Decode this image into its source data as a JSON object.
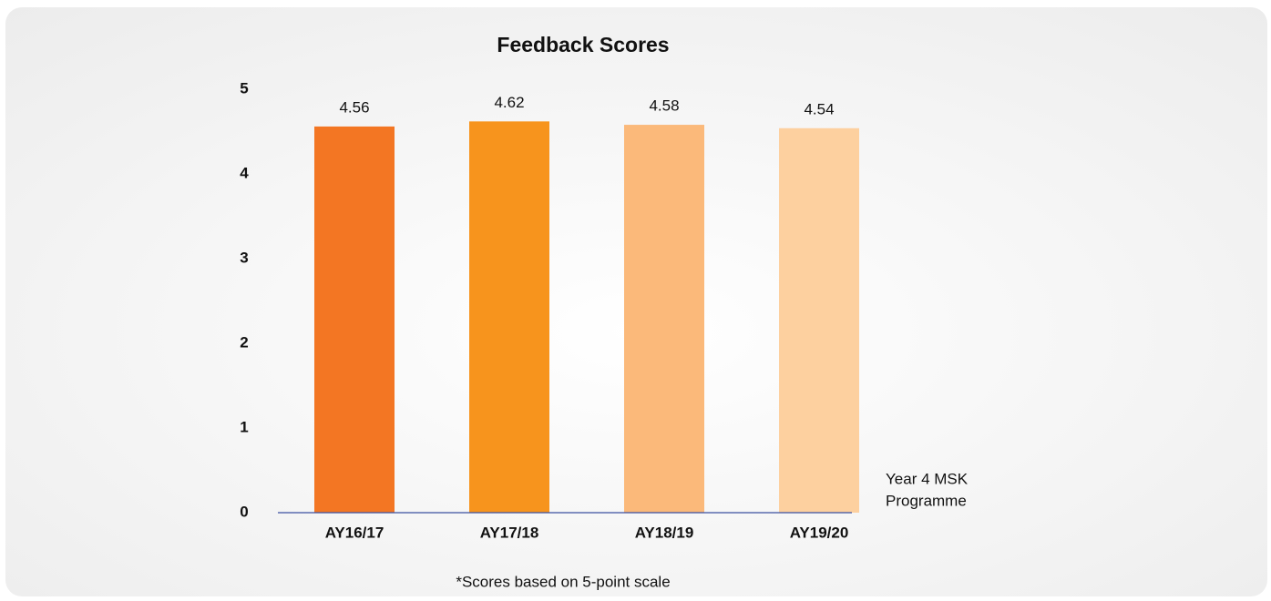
{
  "chart_data": {
    "type": "bar",
    "title": "Feedback Scores",
    "categories": [
      "AY16/17",
      "AY17/18",
      "AY18/19",
      "AY19/20"
    ],
    "values": [
      4.56,
      4.62,
      4.58,
      4.54
    ],
    "colors": [
      "#f37623",
      "#f7941d",
      "#fbb97a",
      "#fdd09f"
    ],
    "ylim": [
      0,
      5
    ],
    "yticks": [
      0,
      1,
      2,
      3,
      4,
      5
    ],
    "grid": false,
    "annotation": [
      "Year 4 MSK",
      "Programme"
    ],
    "footnote": "*Scores based on 5-point scale"
  }
}
